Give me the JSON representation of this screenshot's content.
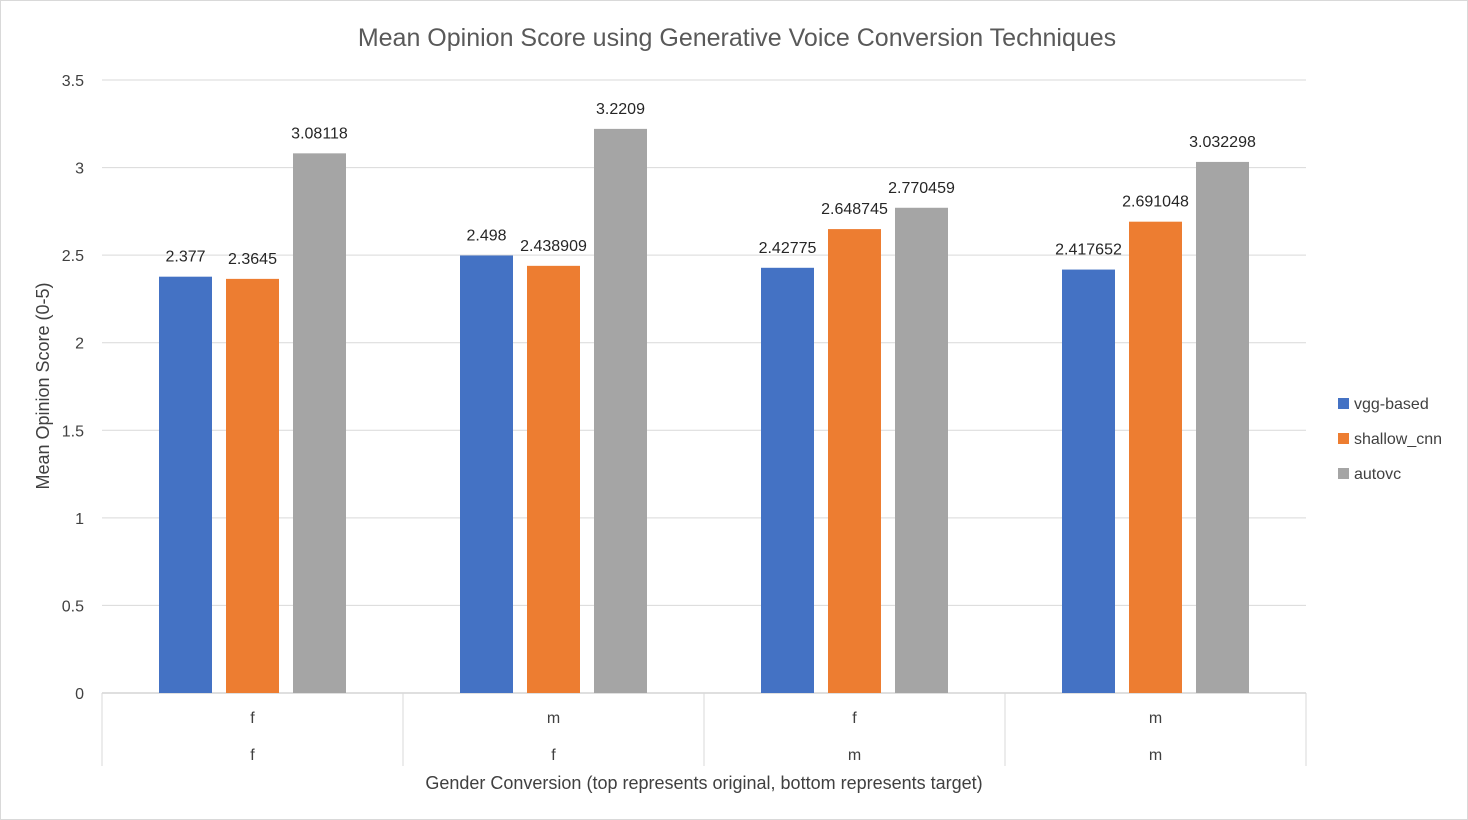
{
  "chart_data": {
    "type": "bar",
    "title": "Mean Opinion Score using Generative Voice Conversion Techniques",
    "xlabel": "Gender Conversion (top represents original, bottom represents target)",
    "ylabel": "Mean Opinion Score (0-5)",
    "ylim": [
      0,
      3.5
    ],
    "ytick_labels": [
      "0",
      "0.5",
      "1",
      "1.5",
      "2",
      "2.5",
      "3",
      "3.5"
    ],
    "categories": [
      {
        "top": "f",
        "bottom": "f"
      },
      {
        "top": "m",
        "bottom": "f"
      },
      {
        "top": "f",
        "bottom": "m"
      },
      {
        "top": "m",
        "bottom": "m"
      }
    ],
    "series": [
      {
        "name": "vgg-based",
        "color": "#4472C4",
        "values": [
          2.377,
          2.498,
          2.42775,
          2.417652
        ],
        "labels": [
          "2.377",
          "2.498",
          "2.42775",
          "2.417652"
        ]
      },
      {
        "name": "shallow_cnn",
        "color": "#ED7D31",
        "values": [
          2.3645,
          2.438909,
          2.648745,
          2.691048
        ],
        "labels": [
          "2.3645",
          "2.438909",
          "2.648745",
          "2.691048"
        ]
      },
      {
        "name": "autovc",
        "color": "#A5A5A5",
        "values": [
          3.08118,
          3.2209,
          2.770459,
          3.032298
        ],
        "labels": [
          "3.08118",
          "3.2209",
          "2.770459",
          "3.032298"
        ]
      }
    ],
    "grid": true,
    "legend_position": "right"
  }
}
